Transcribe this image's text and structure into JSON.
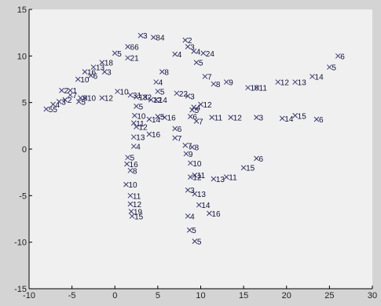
{
  "chart_data": {
    "type": "scatter",
    "title": "",
    "xlabel": "",
    "ylabel": "",
    "xlim": [
      -10,
      30
    ],
    "ylim": [
      -15,
      15
    ],
    "xticks": [
      -10,
      -5,
      0,
      5,
      10,
      15,
      20,
      25,
      30
    ],
    "yticks": [
      -15,
      -10,
      -5,
      0,
      5,
      10,
      15
    ],
    "xtick_labels": [
      "-10",
      "-5",
      "0",
      "5",
      "10",
      "15",
      "20",
      "25",
      "30"
    ],
    "ytick_labels": [
      "-15",
      "-10",
      "-5",
      "0",
      "5",
      "10",
      "15"
    ],
    "grid": false,
    "legend": "none",
    "marker": "x",
    "background_color": "#f0f0f0",
    "figure_color": "#d4d4d4",
    "marker_color": "#3a3a7a",
    "series": [
      {
        "points": [
          {
            "x": -8,
            "y": 4.3,
            "label": "55"
          },
          {
            "x": -7.2,
            "y": 4.8,
            "label": "4"
          },
          {
            "x": -6.5,
            "y": 5.1,
            "label": "3"
          },
          {
            "x": -5.8,
            "y": 5.3,
            "label": "2"
          },
          {
            "x": -5.2,
            "y": 6.3,
            "label": "1"
          },
          {
            "x": -4.3,
            "y": 7.5,
            "label": "10"
          },
          {
            "x": -3.5,
            "y": 8.3,
            "label": "16"
          },
          {
            "x": -2.5,
            "y": 8.8,
            "label": "13"
          },
          {
            "x": -1.5,
            "y": 9.3,
            "label": "18"
          },
          {
            "x": 0,
            "y": 10.3,
            "label": "5"
          },
          {
            "x": 1.5,
            "y": 11,
            "label": "66"
          },
          {
            "x": 3,
            "y": 12.2,
            "label": "3"
          },
          {
            "x": 4.5,
            "y": 12,
            "label": "84"
          }
        ]
      },
      {
        "points": [
          {
            "x": -6.2,
            "y": 6.3,
            "label": "2"
          },
          {
            "x": -4.2,
            "y": 5.1,
            "label": "5"
          },
          {
            "x": -2.8,
            "y": 7.9,
            "label": "6"
          },
          {
            "x": -1.2,
            "y": 8.3,
            "label": "3"
          },
          {
            "x": 1.5,
            "y": 9.8,
            "label": "21"
          },
          {
            "x": -5.2,
            "y": 5.8,
            "label": "7"
          },
          {
            "x": -4,
            "y": 5.5,
            "label": "9"
          }
        ]
      },
      {
        "points": [
          {
            "x": -3.5,
            "y": 5.5,
            "label": "10"
          },
          {
            "x": -1.5,
            "y": 5.5,
            "label": "12"
          },
          {
            "x": 0.3,
            "y": 6.2,
            "label": "10"
          },
          {
            "x": 1.8,
            "y": 5.8,
            "label": "31"
          },
          {
            "x": 3.5,
            "y": 5.6,
            "label": "2"
          },
          {
            "x": 4.2,
            "y": 5.3,
            "label": "12"
          }
        ]
      },
      {
        "points": [
          {
            "x": 4.8,
            "y": 7.2,
            "label": "4"
          },
          {
            "x": 5.5,
            "y": 8.3,
            "label": "8"
          },
          {
            "x": 7,
            "y": 10.2,
            "label": "4"
          },
          {
            "x": 8.2,
            "y": 11.7,
            "label": "2"
          },
          {
            "x": 8.5,
            "y": 11.0,
            "label": "3"
          },
          {
            "x": 9.2,
            "y": 10.5,
            "label": "4"
          },
          {
            "x": 9.5,
            "y": 9.3,
            "label": "5"
          },
          {
            "x": 10.3,
            "y": 10.3,
            "label": "24"
          },
          {
            "x": 10.5,
            "y": 7.8,
            "label": "7"
          },
          {
            "x": 11.5,
            "y": 7,
            "label": "8"
          },
          {
            "x": 13,
            "y": 7.2,
            "label": "9"
          },
          {
            "x": 15.5,
            "y": 6.6,
            "label": "10"
          },
          {
            "x": 16.5,
            "y": 6.6,
            "label": "11"
          },
          {
            "x": 19,
            "y": 7.2,
            "label": "12"
          },
          {
            "x": 21,
            "y": 7.2,
            "label": "13"
          },
          {
            "x": 23,
            "y": 7.8,
            "label": "14"
          },
          {
            "x": 25,
            "y": 8.8,
            "label": "5"
          },
          {
            "x": 26,
            "y": 10,
            "label": "6"
          }
        ]
      },
      {
        "points": [
          {
            "x": 5,
            "y": 6.2,
            "label": "5"
          },
          {
            "x": 4.8,
            "y": 5.3,
            "label": "14"
          },
          {
            "x": 7.2,
            "y": 6,
            "label": "22"
          },
          {
            "x": 8.5,
            "y": 5.7,
            "label": "3"
          },
          {
            "x": 9.2,
            "y": 4.5,
            "label": "4"
          },
          {
            "x": 10,
            "y": 4.8,
            "label": "12"
          },
          {
            "x": 9,
            "y": 4.2,
            "label": "5"
          },
          {
            "x": 8.8,
            "y": 3.5,
            "label": "6"
          },
          {
            "x": 9.5,
            "y": 3.0,
            "label": "7"
          },
          {
            "x": 11.3,
            "y": 3.4,
            "label": "11"
          },
          {
            "x": 13.5,
            "y": 3.4,
            "label": "12"
          },
          {
            "x": 16.5,
            "y": 3.4,
            "label": "3"
          },
          {
            "x": 19.5,
            "y": 3.3,
            "label": "14"
          },
          {
            "x": 21,
            "y": 3.6,
            "label": "15"
          },
          {
            "x": 23.5,
            "y": 3.2,
            "label": "6"
          }
        ]
      },
      {
        "points": [
          {
            "x": 2.5,
            "y": 5.6,
            "label": "13"
          },
          {
            "x": 2.5,
            "y": 4.6,
            "label": "5"
          },
          {
            "x": 2.3,
            "y": 3.6,
            "label": "10"
          },
          {
            "x": 2.2,
            "y": 2.8,
            "label": "11"
          },
          {
            "x": 2.5,
            "y": 2.4,
            "label": "12"
          },
          {
            "x": 4,
            "y": 3.2,
            "label": "14"
          },
          {
            "x": 5,
            "y": 3.5,
            "label": "5"
          },
          {
            "x": 5.8,
            "y": 3.4,
            "label": "16"
          },
          {
            "x": 4,
            "y": 1.6,
            "label": "16"
          },
          {
            "x": 7,
            "y": 2.2,
            "label": "6"
          },
          {
            "x": 7,
            "y": 1.2,
            "label": "7"
          }
        ]
      },
      {
        "points": [
          {
            "x": 2.2,
            "y": 1.3,
            "label": "13"
          },
          {
            "x": 2.2,
            "y": 0.3,
            "label": "4"
          },
          {
            "x": 1.5,
            "y": -0.9,
            "label": "5"
          },
          {
            "x": 1.4,
            "y": -1.6,
            "label": "16"
          },
          {
            "x": 1.8,
            "y": -2.3,
            "label": "8"
          },
          {
            "x": 1.3,
            "y": -3.8,
            "label": "10"
          },
          {
            "x": 1.8,
            "y": -5,
            "label": "11"
          },
          {
            "x": 1.8,
            "y": -5.9,
            "label": "12"
          },
          {
            "x": 1.9,
            "y": -6.7,
            "label": "19"
          },
          {
            "x": 2.0,
            "y": -7.2,
            "label": "15"
          }
        ]
      },
      {
        "points": [
          {
            "x": 8.2,
            "y": 0.4,
            "label": "7"
          },
          {
            "x": 9,
            "y": 0.2,
            "label": "8"
          },
          {
            "x": 8.3,
            "y": -0.5,
            "label": "9"
          },
          {
            "x": 8.8,
            "y": -1.5,
            "label": "10"
          },
          {
            "x": 9.3,
            "y": -2.8,
            "label": "11"
          },
          {
            "x": 8.8,
            "y": -3.0,
            "label": "12"
          },
          {
            "x": 8.5,
            "y": -4.4,
            "label": "3"
          },
          {
            "x": 9.3,
            "y": -4.8,
            "label": "13"
          },
          {
            "x": 9.8,
            "y": -6,
            "label": "14"
          },
          {
            "x": 8.5,
            "y": -7.2,
            "label": "4"
          },
          {
            "x": 11,
            "y": -6.9,
            "label": "16"
          },
          {
            "x": 8.7,
            "y": -8.7,
            "label": "5"
          },
          {
            "x": 9.3,
            "y": -9.9,
            "label": "5"
          }
        ]
      },
      {
        "points": [
          {
            "x": 11.5,
            "y": -3.2,
            "label": "13"
          },
          {
            "x": 13,
            "y": -3.0,
            "label": "11"
          },
          {
            "x": 15,
            "y": -2.0,
            "label": "15"
          },
          {
            "x": 16.5,
            "y": -1.0,
            "label": "6"
          }
        ]
      }
    ]
  }
}
